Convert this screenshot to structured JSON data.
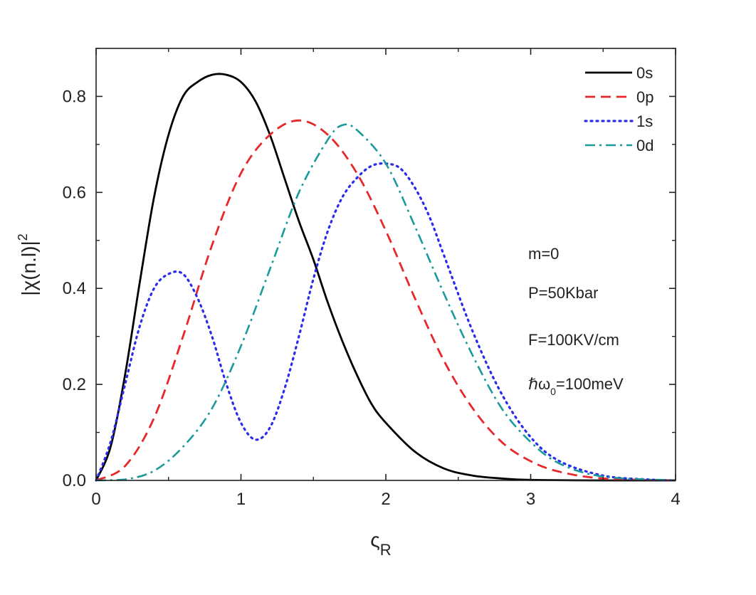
{
  "chart_data": {
    "type": "line",
    "xlabel": "ς",
    "xlabel_sub": "R",
    "ylabel": "|χ(n.l)|",
    "ylabel_sup": "2",
    "xlim": [
      0,
      4
    ],
    "ylim": [
      0,
      0.9
    ],
    "x_ticks": [
      "0",
      "1",
      "2",
      "3",
      "4"
    ],
    "y_ticks": [
      "0.0",
      "0.2",
      "0.4",
      "0.6",
      "0.8"
    ],
    "grid": false,
    "legend_position": "top-right",
    "series": [
      {
        "name": "0s",
        "color": "#000000",
        "style": "solid",
        "x": [
          0,
          0.1,
          0.2,
          0.3,
          0.4,
          0.5,
          0.6,
          0.7,
          0.8,
          0.9,
          1.0,
          1.1,
          1.2,
          1.3,
          1.4,
          1.5,
          1.6,
          1.7,
          1.8,
          1.9,
          2.0,
          2.2,
          2.4,
          2.6,
          2.8,
          3.0,
          3.5,
          4.0
        ],
        "y": [
          0,
          0.07,
          0.22,
          0.41,
          0.59,
          0.72,
          0.8,
          0.83,
          0.845,
          0.845,
          0.83,
          0.79,
          0.72,
          0.63,
          0.54,
          0.46,
          0.37,
          0.29,
          0.22,
          0.16,
          0.12,
          0.06,
          0.025,
          0.01,
          0.004,
          0.001,
          0,
          0
        ]
      },
      {
        "name": "0p",
        "color": "#e8272b",
        "style": "dashed",
        "x": [
          0,
          0.2,
          0.4,
          0.6,
          0.8,
          1.0,
          1.2,
          1.4,
          1.6,
          1.8,
          2.0,
          2.2,
          2.4,
          2.6,
          2.8,
          3.0,
          3.2,
          3.5,
          4.0
        ],
        "y": [
          0,
          0.03,
          0.13,
          0.3,
          0.49,
          0.64,
          0.72,
          0.75,
          0.72,
          0.64,
          0.52,
          0.38,
          0.25,
          0.15,
          0.08,
          0.04,
          0.018,
          0.004,
          0
        ]
      },
      {
        "name": "1s",
        "color": "#2b2bea",
        "style": "dotted",
        "x": [
          0,
          0.1,
          0.2,
          0.3,
          0.4,
          0.5,
          0.6,
          0.7,
          0.8,
          0.9,
          1.0,
          1.1,
          1.2,
          1.3,
          1.4,
          1.5,
          1.6,
          1.7,
          1.8,
          1.9,
          2.0,
          2.1,
          2.2,
          2.3,
          2.4,
          2.6,
          2.8,
          3.0,
          3.2,
          3.5,
          3.8,
          4.0
        ],
        "y": [
          0,
          0.08,
          0.2,
          0.32,
          0.4,
          0.43,
          0.43,
          0.38,
          0.3,
          0.2,
          0.12,
          0.085,
          0.11,
          0.19,
          0.3,
          0.42,
          0.52,
          0.59,
          0.63,
          0.655,
          0.66,
          0.65,
          0.61,
          0.55,
          0.47,
          0.31,
          0.18,
          0.09,
          0.04,
          0.01,
          0.002,
          0
        ]
      },
      {
        "name": "0d",
        "color": "#1a9a9a",
        "style": "dashdot",
        "x": [
          0,
          0.2,
          0.4,
          0.6,
          0.8,
          1.0,
          1.2,
          1.4,
          1.6,
          1.7,
          1.8,
          2.0,
          2.2,
          2.4,
          2.6,
          2.8,
          3.0,
          3.2,
          3.5,
          4.0
        ],
        "y": [
          0,
          0.002,
          0.02,
          0.07,
          0.15,
          0.28,
          0.44,
          0.6,
          0.71,
          0.74,
          0.73,
          0.66,
          0.53,
          0.39,
          0.26,
          0.15,
          0.08,
          0.035,
          0.008,
          0
        ]
      }
    ],
    "annotations": [
      "m=0",
      "P=50Kbar",
      "F=100KV/cm",
      "ℏω",
      "0",
      "=100meV"
    ]
  }
}
